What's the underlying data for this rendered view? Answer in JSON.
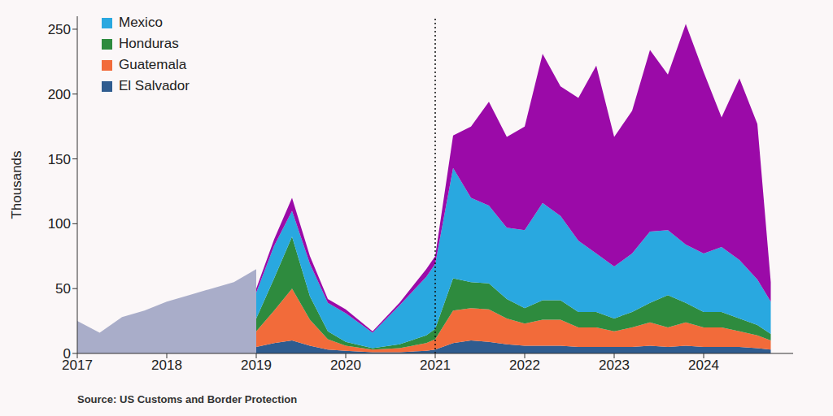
{
  "chart_data": {
    "type": "area",
    "ylabel": "Thousands",
    "source": "Source: US Customs and Border Protection",
    "stacked": true,
    "legend": "upper left",
    "xlim": [
      2017,
      2025
    ],
    "xticks": [
      2017,
      2018,
      2019,
      2020,
      2021,
      2022,
      2023,
      2024
    ],
    "ylim": [
      0,
      260
    ],
    "yticks": [
      0,
      50,
      100,
      150,
      200,
      250
    ],
    "reference_lines": [
      {
        "x": 2021,
        "line_style": "dotted"
      }
    ],
    "x": [
      2017.0,
      2017.25,
      2017.5,
      2017.75,
      2018.0,
      2018.25,
      2018.5,
      2018.75,
      2019.0,
      2019.2,
      2019.4,
      2019.6,
      2019.8,
      2020.0,
      2020.3,
      2020.6,
      2020.9,
      2021.0,
      2021.2,
      2021.4,
      2021.6,
      2021.8,
      2022.0,
      2022.2,
      2022.4,
      2022.6,
      2022.8,
      2023.0,
      2023.2,
      2023.4,
      2023.6,
      2023.8,
      2024.0,
      2024.2,
      2024.4,
      2024.6,
      2024.75
    ],
    "series": [
      {
        "name": null,
        "color": "#a9adc9",
        "stacked": false,
        "values": [
          25,
          16,
          28,
          33,
          40,
          45,
          50,
          55,
          65,
          null,
          null,
          null,
          null,
          null,
          null,
          null,
          null,
          null,
          null,
          null,
          null,
          null,
          null,
          null,
          null,
          null,
          null,
          null,
          null,
          null,
          null,
          null,
          null,
          null,
          null,
          null,
          null
        ]
      },
      {
        "name": "El Salvador",
        "color": "#2f5c8f",
        "values": [
          null,
          null,
          null,
          null,
          null,
          null,
          null,
          null,
          5,
          8,
          10,
          6,
          3,
          2,
          1,
          1,
          2,
          3,
          8,
          10,
          9,
          7,
          6,
          6,
          6,
          5,
          5,
          5,
          5,
          6,
          5,
          6,
          5,
          5,
          5,
          4,
          3
        ]
      },
      {
        "name": "Guatemala",
        "color": "#f26b3a",
        "values": [
          null,
          null,
          null,
          null,
          null,
          null,
          null,
          null,
          12,
          25,
          40,
          20,
          8,
          4,
          2,
          3,
          6,
          8,
          25,
          25,
          25,
          20,
          17,
          20,
          20,
          15,
          15,
          12,
          15,
          18,
          15,
          18,
          15,
          15,
          12,
          10,
          7
        ]
      },
      {
        "name": "Honduras",
        "color": "#2e8b3e",
        "values": [
          null,
          null,
          null,
          null,
          null,
          null,
          null,
          null,
          10,
          25,
          40,
          18,
          6,
          3,
          1,
          3,
          6,
          8,
          25,
          20,
          20,
          15,
          12,
          15,
          15,
          12,
          12,
          10,
          12,
          15,
          25,
          15,
          12,
          12,
          10,
          8,
          5
        ]
      },
      {
        "name": "Mexico",
        "color": "#29a8e0",
        "values": [
          null,
          null,
          null,
          null,
          null,
          null,
          null,
          null,
          20,
          25,
          20,
          25,
          22,
          22,
          12,
          30,
          45,
          50,
          85,
          65,
          60,
          55,
          60,
          75,
          65,
          55,
          45,
          40,
          45,
          55,
          50,
          45,
          45,
          50,
          45,
          35,
          25
        ]
      },
      {
        "name": null,
        "color": "#9b0aa8",
        "values": [
          null,
          null,
          null,
          null,
          null,
          null,
          null,
          null,
          3,
          5,
          10,
          6,
          3,
          3,
          1,
          2,
          6,
          6,
          25,
          55,
          80,
          70,
          80,
          115,
          100,
          110,
          145,
          100,
          110,
          140,
          120,
          170,
          140,
          100,
          140,
          120,
          15
        ]
      }
    ]
  }
}
